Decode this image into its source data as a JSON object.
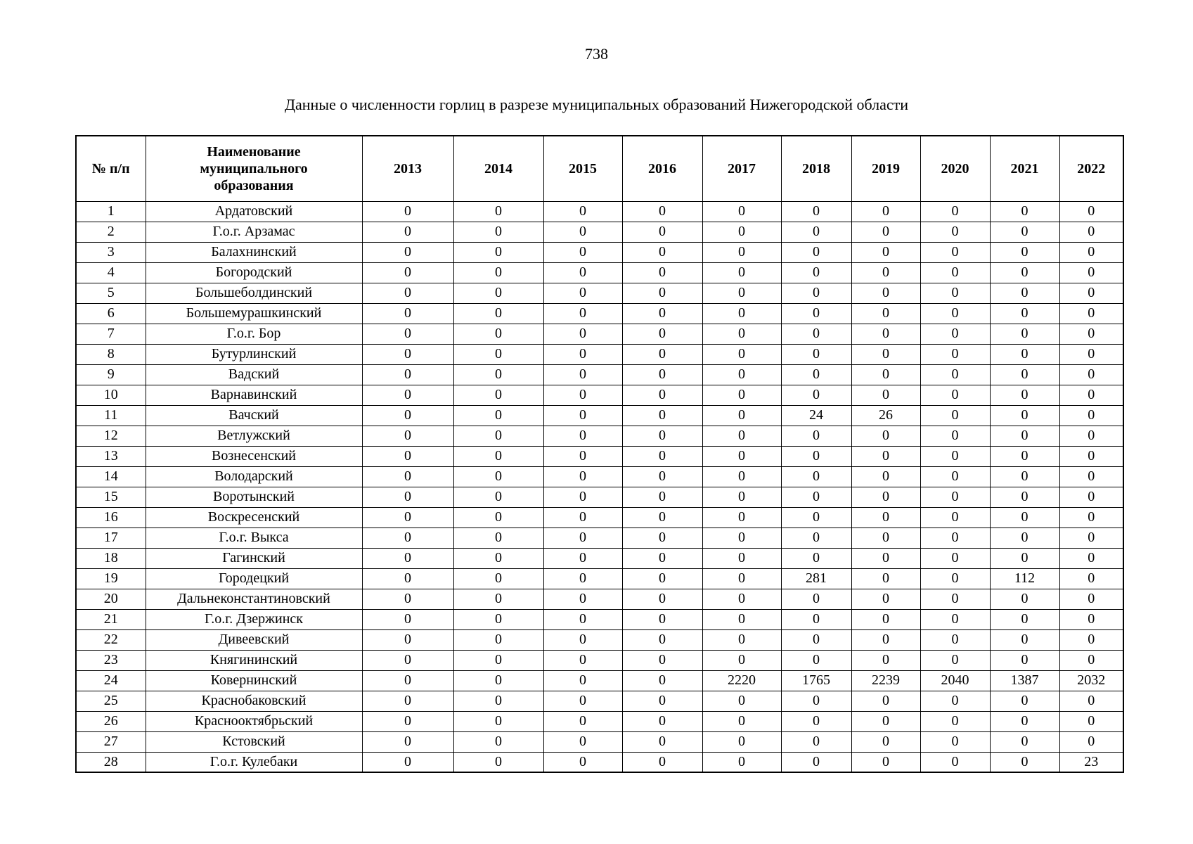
{
  "page": {
    "number": "738",
    "title": "Данные о численности горлиц в разрезе муниципальных образований Нижегородской области"
  },
  "table": {
    "header": {
      "index": "№ п/п",
      "name": "Наименование\nмуниципального\nобразования",
      "years": [
        "2013",
        "2014",
        "2015",
        "2016",
        "2017",
        "2018",
        "2019",
        "2020",
        "2021",
        "2022"
      ]
    },
    "rows": [
      {
        "n": "1",
        "name": "Ардатовский",
        "values": [
          "0",
          "0",
          "0",
          "0",
          "0",
          "0",
          "0",
          "0",
          "0",
          "0"
        ]
      },
      {
        "n": "2",
        "name": "Г.о.г. Арзамас",
        "values": [
          "0",
          "0",
          "0",
          "0",
          "0",
          "0",
          "0",
          "0",
          "0",
          "0"
        ]
      },
      {
        "n": "3",
        "name": "Балахнинский",
        "values": [
          "0",
          "0",
          "0",
          "0",
          "0",
          "0",
          "0",
          "0",
          "0",
          "0"
        ]
      },
      {
        "n": "4",
        "name": "Богородский",
        "values": [
          "0",
          "0",
          "0",
          "0",
          "0",
          "0",
          "0",
          "0",
          "0",
          "0"
        ]
      },
      {
        "n": "5",
        "name": "Большеболдинский",
        "values": [
          "0",
          "0",
          "0",
          "0",
          "0",
          "0",
          "0",
          "0",
          "0",
          "0"
        ]
      },
      {
        "n": "6",
        "name": "Большемурашкинский",
        "values": [
          "0",
          "0",
          "0",
          "0",
          "0",
          "0",
          "0",
          "0",
          "0",
          "0"
        ]
      },
      {
        "n": "7",
        "name": "Г.о.г. Бор",
        "values": [
          "0",
          "0",
          "0",
          "0",
          "0",
          "0",
          "0",
          "0",
          "0",
          "0"
        ]
      },
      {
        "n": "8",
        "name": "Бутурлинский",
        "values": [
          "0",
          "0",
          "0",
          "0",
          "0",
          "0",
          "0",
          "0",
          "0",
          "0"
        ]
      },
      {
        "n": "9",
        "name": "Вадский",
        "values": [
          "0",
          "0",
          "0",
          "0",
          "0",
          "0",
          "0",
          "0",
          "0",
          "0"
        ]
      },
      {
        "n": "10",
        "name": "Варнавинский",
        "values": [
          "0",
          "0",
          "0",
          "0",
          "0",
          "0",
          "0",
          "0",
          "0",
          "0"
        ]
      },
      {
        "n": "11",
        "name": "Вачский",
        "values": [
          "0",
          "0",
          "0",
          "0",
          "0",
          "24",
          "26",
          "0",
          "0",
          "0"
        ]
      },
      {
        "n": "12",
        "name": "Ветлужский",
        "values": [
          "0",
          "0",
          "0",
          "0",
          "0",
          "0",
          "0",
          "0",
          "0",
          "0"
        ]
      },
      {
        "n": "13",
        "name": "Вознесенский",
        "values": [
          "0",
          "0",
          "0",
          "0",
          "0",
          "0",
          "0",
          "0",
          "0",
          "0"
        ]
      },
      {
        "n": "14",
        "name": "Володарский",
        "values": [
          "0",
          "0",
          "0",
          "0",
          "0",
          "0",
          "0",
          "0",
          "0",
          "0"
        ]
      },
      {
        "n": "15",
        "name": "Воротынский",
        "values": [
          "0",
          "0",
          "0",
          "0",
          "0",
          "0",
          "0",
          "0",
          "0",
          "0"
        ]
      },
      {
        "n": "16",
        "name": "Воскресенский",
        "values": [
          "0",
          "0",
          "0",
          "0",
          "0",
          "0",
          "0",
          "0",
          "0",
          "0"
        ]
      },
      {
        "n": "17",
        "name": "Г.о.г. Выкса",
        "values": [
          "0",
          "0",
          "0",
          "0",
          "0",
          "0",
          "0",
          "0",
          "0",
          "0"
        ]
      },
      {
        "n": "18",
        "name": "Гагинский",
        "values": [
          "0",
          "0",
          "0",
          "0",
          "0",
          "0",
          "0",
          "0",
          "0",
          "0"
        ]
      },
      {
        "n": "19",
        "name": "Городецкий",
        "values": [
          "0",
          "0",
          "0",
          "0",
          "0",
          "281",
          "0",
          "0",
          "112",
          "0"
        ]
      },
      {
        "n": "20",
        "name": "Дальнеконстантиновский",
        "values": [
          "0",
          "0",
          "0",
          "0",
          "0",
          "0",
          "0",
          "0",
          "0",
          "0"
        ]
      },
      {
        "n": "21",
        "name": "Г.о.г. Дзержинск",
        "values": [
          "0",
          "0",
          "0",
          "0",
          "0",
          "0",
          "0",
          "0",
          "0",
          "0"
        ]
      },
      {
        "n": "22",
        "name": "Дивеевский",
        "values": [
          "0",
          "0",
          "0",
          "0",
          "0",
          "0",
          "0",
          "0",
          "0",
          "0"
        ]
      },
      {
        "n": "23",
        "name": "Княгининский",
        "values": [
          "0",
          "0",
          "0",
          "0",
          "0",
          "0",
          "0",
          "0",
          "0",
          "0"
        ]
      },
      {
        "n": "24",
        "name": "Ковернинский",
        "values": [
          "0",
          "0",
          "0",
          "0",
          "2220",
          "1765",
          "2239",
          "2040",
          "1387",
          "2032"
        ]
      },
      {
        "n": "25",
        "name": "Краснобаковский",
        "values": [
          "0",
          "0",
          "0",
          "0",
          "0",
          "0",
          "0",
          "0",
          "0",
          "0"
        ]
      },
      {
        "n": "26",
        "name": "Краснооктябрьский",
        "values": [
          "0",
          "0",
          "0",
          "0",
          "0",
          "0",
          "0",
          "0",
          "0",
          "0"
        ]
      },
      {
        "n": "27",
        "name": "Кстовский",
        "values": [
          "0",
          "0",
          "0",
          "0",
          "0",
          "0",
          "0",
          "0",
          "0",
          "0"
        ]
      },
      {
        "n": "28",
        "name": "Г.о.г. Кулебаки",
        "values": [
          "0",
          "0",
          "0",
          "0",
          "0",
          "0",
          "0",
          "0",
          "0",
          "23"
        ]
      }
    ]
  }
}
